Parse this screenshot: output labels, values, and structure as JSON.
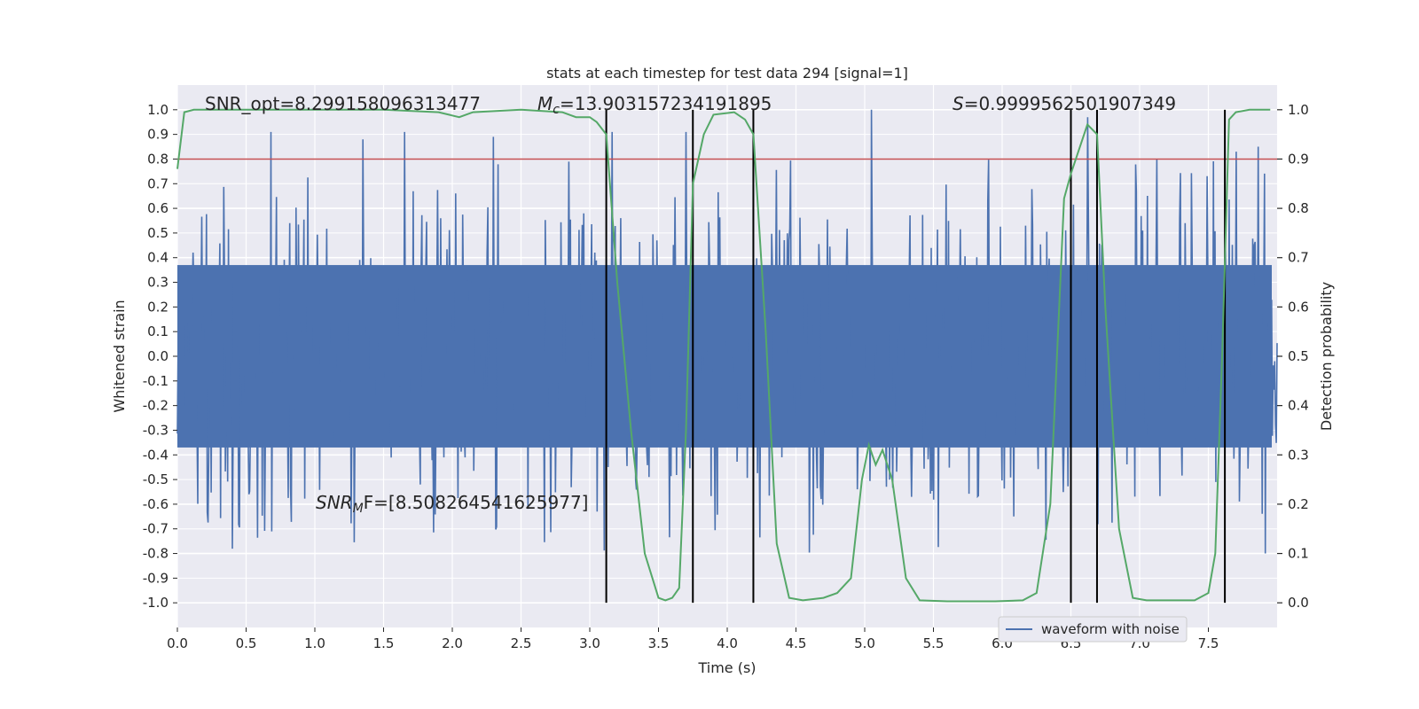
{
  "chart_data": {
    "type": "line",
    "title": "stats at each timestep for test data 294 [signal=1]",
    "xlabel": "Time (s)",
    "ylabel": "Whitened strain",
    "y2label": "Detection probability",
    "xlim": [
      0.0,
      8.0
    ],
    "ylim": [
      -1.1,
      1.1
    ],
    "y2lim": [
      -0.05,
      1.05
    ],
    "grid": true,
    "x_ticks": [
      "0.0",
      "0.5",
      "1.0",
      "1.5",
      "2.0",
      "2.5",
      "3.0",
      "3.5",
      "4.0",
      "4.5",
      "5.0",
      "5.5",
      "6.0",
      "6.5",
      "7.0",
      "7.5"
    ],
    "y_ticks": [
      "1.0",
      "0.9",
      "0.8",
      "0.7",
      "0.6",
      "0.5",
      "0.4",
      "0.3",
      "0.2",
      "0.1",
      "0.0",
      "-0.1",
      "-0.2",
      "-0.3",
      "-0.4",
      "-0.5",
      "-0.6",
      "-0.7",
      "-0.8",
      "-0.9",
      "-1.0"
    ],
    "y2_ticks": [
      "1.0",
      "0.9",
      "0.8",
      "0.7",
      "0.6",
      "0.5",
      "0.4",
      "0.3",
      "0.2",
      "0.1",
      "0.0"
    ],
    "annotations": {
      "snr_opt": "SNR_opt=8.299158096313477",
      "mc_symbol": "M",
      "mc_sub": "c",
      "mc_value": "=13.903157234191895",
      "s_symbol": "S",
      "s_value": "=0.9999562501907349",
      "snr_mf_symbol": "SNR",
      "snr_mf_sub": "M",
      "snr_mf_value": "F=[8.508264541625977]"
    },
    "legend": {
      "position": "lower-right",
      "entries": [
        "waveform with noise"
      ]
    },
    "threshold_line": {
      "y": 0.8,
      "color": "#c44e52"
    },
    "vertical_lines_x": [
      3.12,
      3.75,
      4.19,
      6.5,
      6.69,
      7.62
    ],
    "series": [
      {
        "name": "waveform with noise",
        "color": "#4c72b0",
        "axis": "left",
        "band_core": [
          -0.37,
          0.37
        ],
        "notable_peaks_x": [
          0.68,
          1.35,
          1.65,
          1.65,
          2.3,
          3.16,
          3.7,
          5.05,
          6.62,
          7.7,
          7.86
        ],
        "notable_peaks_y": [
          0.91,
          0.88,
          0.91,
          0.91,
          0.89,
          0.91,
          0.91,
          1.0,
          0.97,
          0.83,
          0.85
        ]
      },
      {
        "name": "",
        "color": "#55a868",
        "axis": "right",
        "x": [
          0.0,
          0.05,
          0.12,
          0.3,
          0.6,
          1.0,
          1.5,
          1.9,
          2.05,
          2.15,
          2.5,
          2.8,
          2.9,
          3.0,
          3.05,
          3.12,
          3.2,
          3.3,
          3.4,
          3.5,
          3.55,
          3.6,
          3.65,
          3.7,
          3.75,
          3.83,
          3.9,
          4.05,
          4.13,
          4.19,
          4.28,
          4.36,
          4.45,
          4.55,
          4.7,
          4.8,
          4.9,
          4.98,
          5.03,
          5.08,
          5.13,
          5.2,
          5.3,
          5.4,
          5.6,
          5.8,
          5.95,
          6.15,
          6.25,
          6.35,
          6.45,
          6.5,
          6.62,
          6.69,
          6.75,
          6.85,
          6.95,
          7.05,
          7.2,
          7.4,
          7.5,
          7.55,
          7.6,
          7.65,
          7.7,
          7.8,
          7.95
        ],
        "y": [
          0.88,
          0.995,
          1.0,
          1.0,
          1.0,
          1.0,
          1.0,
          0.995,
          0.985,
          0.995,
          1.0,
          0.995,
          0.985,
          0.985,
          0.975,
          0.95,
          0.65,
          0.35,
          0.1,
          0.01,
          0.005,
          0.01,
          0.03,
          0.35,
          0.85,
          0.95,
          0.99,
          0.995,
          0.98,
          0.95,
          0.55,
          0.12,
          0.01,
          0.005,
          0.01,
          0.02,
          0.05,
          0.25,
          0.32,
          0.28,
          0.31,
          0.25,
          0.05,
          0.005,
          0.003,
          0.003,
          0.003,
          0.005,
          0.02,
          0.2,
          0.82,
          0.87,
          0.97,
          0.95,
          0.6,
          0.15,
          0.01,
          0.005,
          0.005,
          0.005,
          0.02,
          0.1,
          0.5,
          0.98,
          0.995,
          1.0,
          1.0
        ]
      }
    ]
  }
}
